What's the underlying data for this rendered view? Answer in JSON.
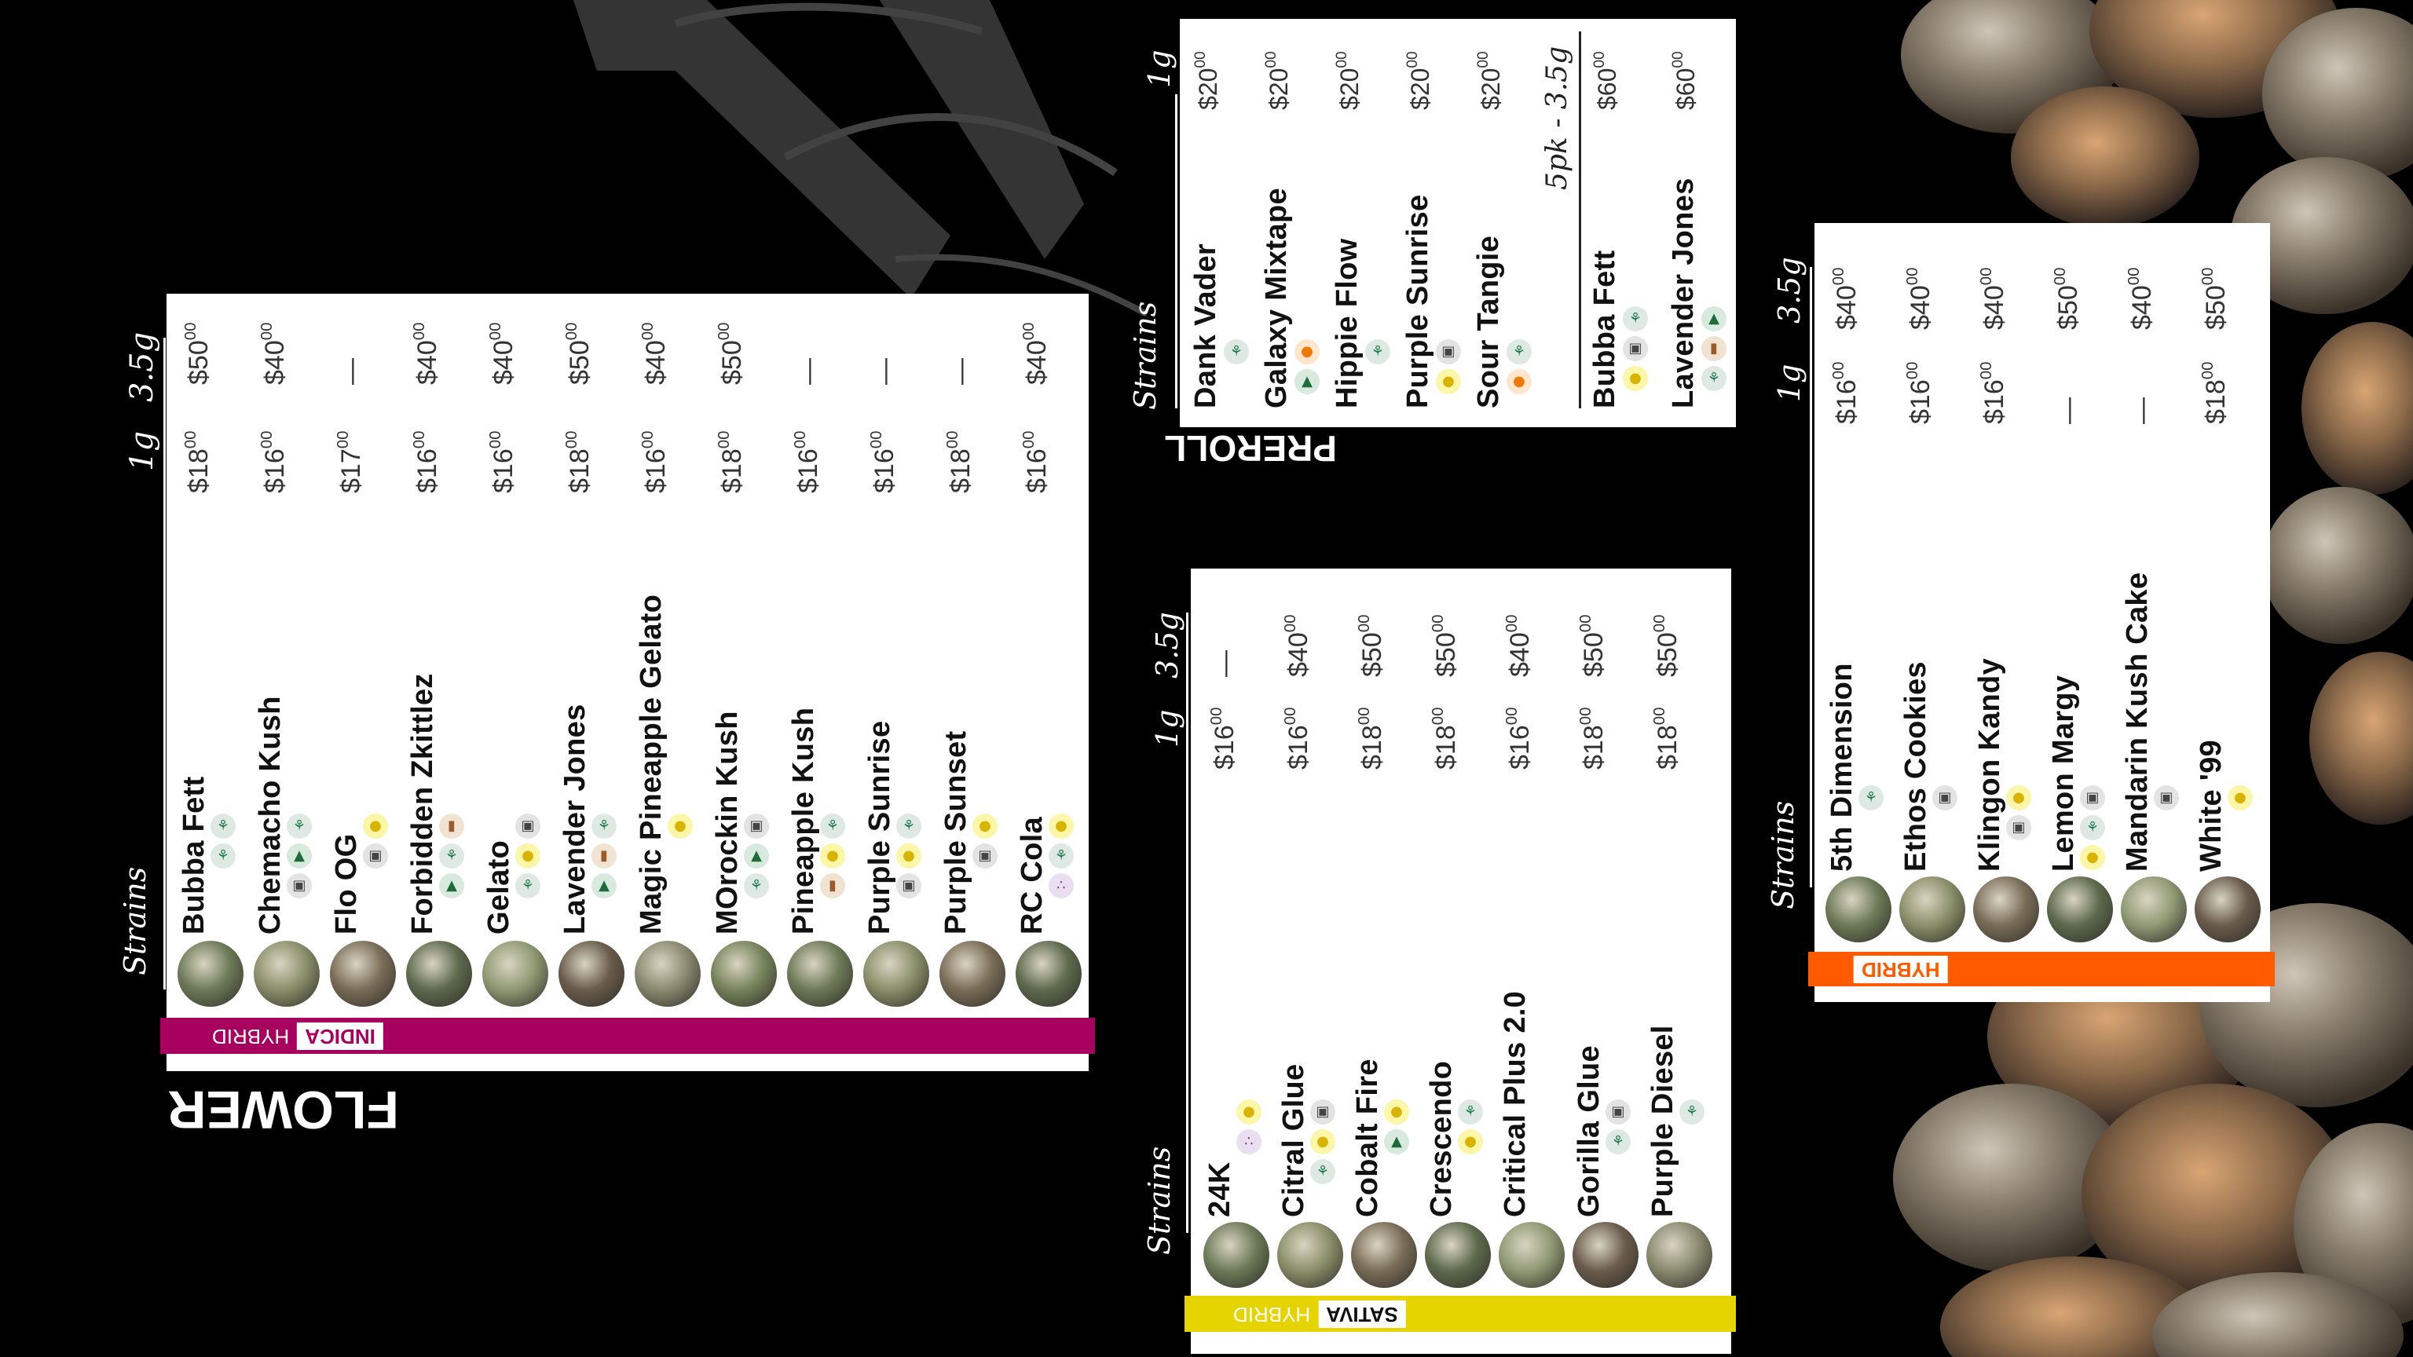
{
  "flower": {
    "title": "FLOWER",
    "band_primary": "INDICA",
    "band_secondary": "HYBRID",
    "band_color": "#a8005e",
    "header_strains": "Strains",
    "header_1g": "1g",
    "header_35g": "3.5g",
    "items": [
      {
        "name": "Bubba Fett",
        "icons": [
          "leaf-icon",
          "leaf-icon"
        ],
        "p1": "$18",
        "p2": "$50"
      },
      {
        "name": "Chemacho Kush",
        "icons": [
          "fuel-icon",
          "pine-icon",
          "leaf-icon"
        ],
        "p1": "$16",
        "p2": "$40"
      },
      {
        "name": "Flo OG",
        "icons": [
          "fuel-icon",
          "lemon-icon"
        ],
        "p1": "$17",
        "p2": "—"
      },
      {
        "name": "Forbidden Zkittlez",
        "icons": [
          "pine-icon",
          "leaf-icon",
          "wood-icon"
        ],
        "p1": "$16",
        "p2": "$40"
      },
      {
        "name": "Gelato",
        "icons": [
          "leaf-icon",
          "lemon-icon",
          "fuel-icon"
        ],
        "p1": "$16",
        "p2": "$40"
      },
      {
        "name": "Lavender Jones",
        "icons": [
          "pine-icon",
          "wood-icon",
          "leaf-icon"
        ],
        "p1": "$18",
        "p2": "$50"
      },
      {
        "name": "Magic Pineapple Gelato",
        "icons": [
          "lemon-icon"
        ],
        "p1": "$16",
        "p2": "$40"
      },
      {
        "name": "MOrockin Kush",
        "icons": [
          "leaf-icon",
          "pine-icon",
          "fuel-icon"
        ],
        "p1": "$18",
        "p2": "$50"
      },
      {
        "name": "Pineapple Kush",
        "icons": [
          "wood-icon",
          "lemon-icon",
          "leaf-icon"
        ],
        "p1": "$16",
        "p2": "—"
      },
      {
        "name": "Purple Sunrise",
        "icons": [
          "fuel-icon",
          "lemon-icon",
          "leaf-icon"
        ],
        "p1": "$16",
        "p2": "—"
      },
      {
        "name": "Purple Sunset",
        "icons": [
          "fuel-icon",
          "lemon-icon"
        ],
        "p1": "$18",
        "p2": "—"
      },
      {
        "name": "RC Cola",
        "icons": [
          "grape-icon",
          "leaf-icon",
          "lemon-icon"
        ],
        "p1": "$16",
        "p2": "$40"
      }
    ]
  },
  "preroll": {
    "title": "PREROLL",
    "header_strains": "Strains",
    "header_1g": "1g",
    "header_5pk": "5pk - 3.5g",
    "items": [
      {
        "name": "Dank Vader",
        "icons": [
          "leaf-icon"
        ],
        "p1": "$20"
      },
      {
        "name": "Galaxy Mixtape",
        "icons": [
          "pine-icon",
          "orange-icon"
        ],
        "p1": "$20"
      },
      {
        "name": "Hippie Flow",
        "icons": [
          "leaf-icon"
        ],
        "p1": "$20"
      },
      {
        "name": "Purple Sunrise",
        "icons": [
          "lemon-icon",
          "fuel-icon"
        ],
        "p1": "$20"
      },
      {
        "name": "Sour Tangie",
        "icons": [
          "orange-icon",
          "leaf-icon"
        ],
        "p1": "$20"
      }
    ],
    "packs": [
      {
        "name": "Bubba Fett",
        "icons": [
          "lemon-icon",
          "fuel-icon",
          "leaf-icon"
        ],
        "p1": "$60"
      },
      {
        "name": "Lavender Jones",
        "icons": [
          "leaf-icon",
          "wood-icon",
          "pine-icon"
        ],
        "p1": "$60"
      }
    ]
  },
  "sativa": {
    "band_primary": "SATIVA",
    "band_secondary": "HYBRID",
    "band_color": "#e6d400",
    "header_strains": "Strains",
    "header_1g": "1g",
    "header_35g": "3.5g",
    "items": [
      {
        "name": "24K",
        "icons": [
          "grape-icon",
          "lemon-icon"
        ],
        "p1": "$16",
        "p2": "—"
      },
      {
        "name": "Citral Glue",
        "icons": [
          "leaf-icon",
          "lemon-icon",
          "fuel-icon"
        ],
        "p1": "$16",
        "p2": "$40"
      },
      {
        "name": "Cobalt Fire",
        "icons": [
          "pine-icon",
          "lemon-icon"
        ],
        "p1": "$18",
        "p2": "$50"
      },
      {
        "name": "Crescendo",
        "icons": [
          "lemon-icon",
          "leaf-icon"
        ],
        "p1": "$18",
        "p2": "$50"
      },
      {
        "name": "Critical Plus 2.0",
        "icons": [],
        "p1": "$16",
        "p2": "$40"
      },
      {
        "name": "Gorilla Glue",
        "icons": [
          "leaf-icon",
          "fuel-icon"
        ],
        "p1": "$18",
        "p2": "$50"
      },
      {
        "name": "Purple Diesel",
        "icons": [
          "leaf-icon"
        ],
        "p1": "$18",
        "p2": "$50"
      }
    ]
  },
  "hybrid": {
    "band_primary": "HYBRID",
    "band_color": "#ff5a00",
    "header_strains": "Strains",
    "header_1g": "1g",
    "header_35g": "3.5g",
    "items": [
      {
        "name": "5th Dimension",
        "icons": [
          "leaf-icon"
        ],
        "p1": "$16",
        "p2": "$40"
      },
      {
        "name": "Ethos Cookies",
        "icons": [
          "fuel-icon"
        ],
        "p1": "$16",
        "p2": "$40"
      },
      {
        "name": "Klingon Kandy",
        "icons": [
          "fuel-icon",
          "lemon-icon"
        ],
        "p1": "$16",
        "p2": "$40"
      },
      {
        "name": "Lemon Margy",
        "icons": [
          "lemon-icon",
          "leaf-icon",
          "fuel-icon"
        ],
        "p1": "—",
        "p2": "$50"
      },
      {
        "name": "Mandarin Kush Cake",
        "icons": [
          "fuel-icon"
        ],
        "p1": "—",
        "p2": "$40"
      },
      {
        "name": "White '99",
        "icons": [
          "lemon-icon"
        ],
        "p1": "$18",
        "p2": "$50"
      }
    ]
  },
  "price_cents": "00",
  "colors": {
    "background": "#000000",
    "logo": "#3a3a3a"
  }
}
